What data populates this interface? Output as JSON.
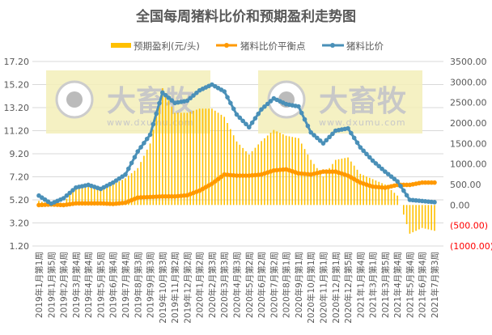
{
  "chart_data": {
    "type": "bar+line",
    "title": "全国每周猪料比价和预期盈利走势图",
    "legend_position": "top",
    "grid": true,
    "categories": [
      "2019年1月第1周",
      "2019年1月第5周",
      "2019年2月第4周",
      "2019年3月第4周",
      "2019年4月第4周",
      "2019年5月第5周",
      "2019年6月第4周",
      "2019年7月第4周",
      "2019年8月第3周",
      "2019年9月第3周",
      "2019年10月第3周",
      "2019年11月第2周",
      "2019年12月第2周",
      "2020年1月第2周",
      "2020年2月第3周",
      "2020年3月第3周",
      "2020年4月第3周",
      "2020年5月第2周",
      "2020年6月第2周",
      "2020年7月第2周",
      "2020年8月第1周",
      "2020年9月第1周",
      "2020年10月第1周",
      "2020年11月第1周",
      "2020年12月第1周",
      "2020年12月第5周",
      "2021年1月第4周",
      "2021年3月第1周",
      "2021年3月第5周",
      "2021年4月第4周",
      "2021年5月第4周",
      "2021年6月第4周",
      "2021年7月第3周"
    ],
    "left_axis": {
      "min": 1.2,
      "max": 17.2,
      "ticks": [
        "17.20",
        "15.20",
        "13.20",
        "11.20",
        "9.20",
        "7.20",
        "5.20",
        "3.20",
        "1.20"
      ]
    },
    "right_axis": {
      "min": -1000,
      "max": 3500,
      "ticks": [
        "3500.00",
        "3000.00",
        "2500.00",
        "2000.00",
        "1500.00",
        "1000.00",
        "500.00",
        "0.00",
        "(500.00)",
        "(1000.00)"
      ],
      "negative_color": "#ff0000"
    },
    "series": [
      {
        "name": "预期盈利(元/头)",
        "type": "bar",
        "axis": "right",
        "color": "#ffc000",
        "values": [
          100,
          10,
          50,
          450,
          500,
          420,
          500,
          650,
          900,
          1500,
          2850,
          2250,
          2250,
          2350,
          2350,
          2150,
          1550,
          1230,
          1560,
          1830,
          1690,
          1630,
          1100,
          700,
          1100,
          1160,
          760,
          630,
          500,
          230,
          -700,
          -560,
          -630
        ]
      },
      {
        "name": "猪料比价平衡点",
        "type": "line",
        "axis": "left",
        "color": "#ff9900",
        "values": [
          4.75,
          4.8,
          4.75,
          4.9,
          4.9,
          4.9,
          4.85,
          4.95,
          5.4,
          5.45,
          5.5,
          5.5,
          5.6,
          6.0,
          6.6,
          7.4,
          7.3,
          7.3,
          7.4,
          7.75,
          7.85,
          7.5,
          7.4,
          7.65,
          7.65,
          7.3,
          6.7,
          6.35,
          6.25,
          6.5,
          6.5,
          6.7,
          6.7
        ]
      },
      {
        "name": "猪料比价",
        "type": "line",
        "axis": "left",
        "color": "#4a90b8",
        "values": [
          5.57,
          4.87,
          5.34,
          6.27,
          6.5,
          6.15,
          6.7,
          7.4,
          9.4,
          10.85,
          14.5,
          13.6,
          13.8,
          14.7,
          15.2,
          14.6,
          12.6,
          11.5,
          13.05,
          14.0,
          13.5,
          13.3,
          11.05,
          10.1,
          11.2,
          11.4,
          9.75,
          8.6,
          7.65,
          6.8,
          5.2,
          5.1,
          5.0
        ]
      }
    ]
  },
  "watermark": {
    "brand": "大畜牧",
    "url": "www.dxumu.com"
  }
}
